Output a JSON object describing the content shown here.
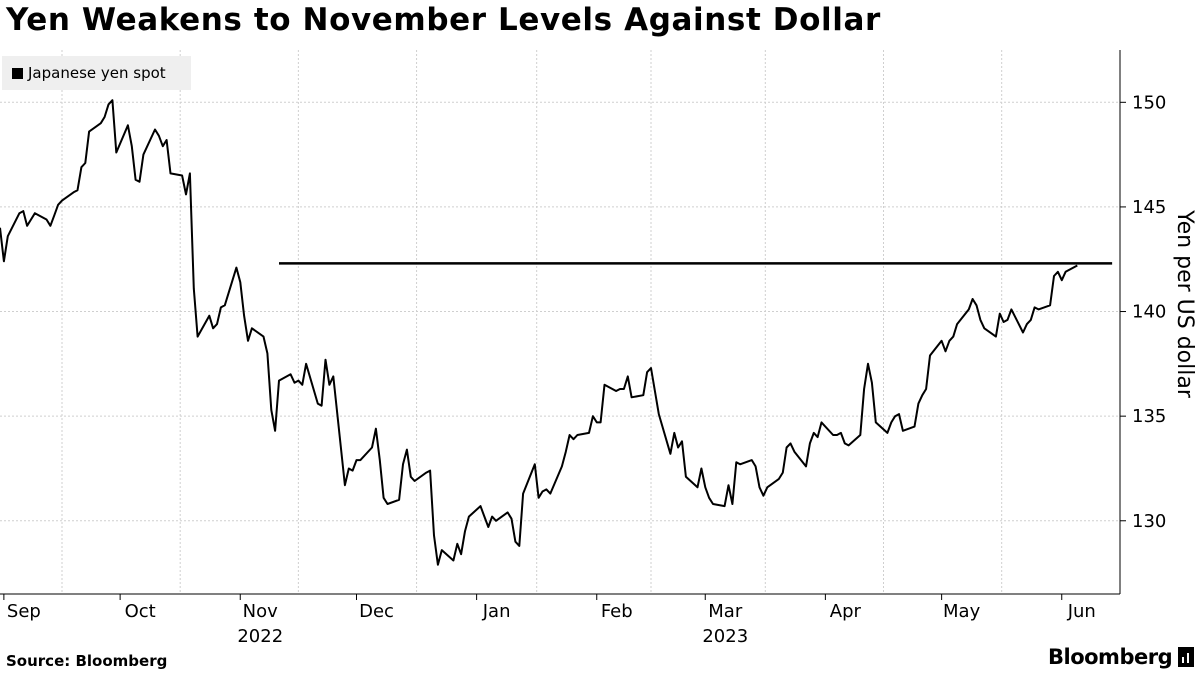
{
  "header": {
    "title": "Yen Weakens to November Levels Against Dollar"
  },
  "footer": {
    "source": "Source: Bloomberg",
    "brand": "Bloomberg"
  },
  "colors": {
    "line": "#000000",
    "grid": "#cfcfcf",
    "legend_bg": "#efefef"
  },
  "chart_data": {
    "type": "line",
    "title": "Yen Weakens to November Levels Against Dollar",
    "ylabel": "Yen per US dollar",
    "xlabel": "",
    "ylim": [
      126.5,
      152.5
    ],
    "y_ticks": [
      130,
      135,
      140,
      145,
      150
    ],
    "y_axis_position": "right",
    "grid": true,
    "legend": {
      "placement": "top-left",
      "entries": [
        "Japanese yen spot"
      ]
    },
    "x_range": [
      "2022-08-31",
      "2023-06-15"
    ],
    "x_month_ticks": [
      {
        "date": "2022-09-01",
        "label": "Sep"
      },
      {
        "date": "2022-10-01",
        "label": "Oct"
      },
      {
        "date": "2022-11-01",
        "label": "Nov"
      },
      {
        "date": "2022-12-01",
        "label": "Dec"
      },
      {
        "date": "2023-01-01",
        "label": "Jan"
      },
      {
        "date": "2023-02-01",
        "label": "Feb"
      },
      {
        "date": "2023-03-01",
        "label": "Mar"
      },
      {
        "date": "2023-04-01",
        "label": "Apr"
      },
      {
        "date": "2023-05-01",
        "label": "May"
      },
      {
        "date": "2023-06-01",
        "label": "Jun"
      }
    ],
    "x_year_labels": [
      {
        "date": "2022-11-01",
        "label": "2022"
      },
      {
        "date": "2023-03-01",
        "label": "2023"
      }
    ],
    "reference_line": {
      "value": 142.3,
      "start": "2022-11-11",
      "end": "2023-06-14"
    },
    "series": [
      {
        "name": "Japanese yen spot",
        "points": [
          [
            "2022-08-31",
            144.0
          ],
          [
            "2022-09-01",
            142.4
          ],
          [
            "2022-09-02",
            143.6
          ],
          [
            "2022-09-05",
            144.7
          ],
          [
            "2022-09-06",
            144.8
          ],
          [
            "2022-09-07",
            144.1
          ],
          [
            "2022-09-08",
            144.4
          ],
          [
            "2022-09-09",
            144.7
          ],
          [
            "2022-09-12",
            144.4
          ],
          [
            "2022-09-13",
            144.1
          ],
          [
            "2022-09-14",
            144.6
          ],
          [
            "2022-09-15",
            145.1
          ],
          [
            "2022-09-16",
            145.3
          ],
          [
            "2022-09-19",
            145.7
          ],
          [
            "2022-09-20",
            145.8
          ],
          [
            "2022-09-21",
            146.9
          ],
          [
            "2022-09-22",
            147.1
          ],
          [
            "2022-09-23",
            148.6
          ],
          [
            "2022-09-26",
            149.0
          ],
          [
            "2022-09-27",
            149.3
          ],
          [
            "2022-09-28",
            149.9
          ],
          [
            "2022-09-29",
            150.1
          ],
          [
            "2022-09-30",
            147.6
          ],
          [
            "2022-10-03",
            148.9
          ],
          [
            "2022-10-04",
            147.9
          ],
          [
            "2022-10-05",
            146.3
          ],
          [
            "2022-10-06",
            146.2
          ],
          [
            "2022-10-07",
            147.5
          ],
          [
            "2022-10-10",
            148.7
          ],
          [
            "2022-10-11",
            148.4
          ],
          [
            "2022-10-12",
            147.9
          ],
          [
            "2022-10-13",
            148.2
          ],
          [
            "2022-10-14",
            146.6
          ],
          [
            "2022-10-17",
            146.5
          ],
          [
            "2022-10-18",
            145.6
          ],
          [
            "2022-10-19",
            146.6
          ],
          [
            "2022-10-20",
            141.1
          ],
          [
            "2022-10-21",
            138.8
          ],
          [
            "2022-10-24",
            139.8
          ],
          [
            "2022-10-25",
            139.2
          ],
          [
            "2022-10-26",
            139.4
          ],
          [
            "2022-10-27",
            140.2
          ],
          [
            "2022-10-28",
            140.3
          ],
          [
            "2022-10-31",
            142.1
          ],
          [
            "2022-11-01",
            141.4
          ],
          [
            "2022-11-02",
            139.8
          ],
          [
            "2022-11-03",
            138.6
          ],
          [
            "2022-11-04",
            139.2
          ],
          [
            "2022-11-07",
            138.8
          ],
          [
            "2022-11-08",
            138.0
          ],
          [
            "2022-11-09",
            135.3
          ],
          [
            "2022-11-10",
            134.3
          ],
          [
            "2022-11-11",
            136.7
          ],
          [
            "2022-11-14",
            137.0
          ],
          [
            "2022-11-15",
            136.6
          ],
          [
            "2022-11-16",
            136.7
          ],
          [
            "2022-11-17",
            136.5
          ],
          [
            "2022-11-18",
            137.5
          ],
          [
            "2022-11-21",
            135.6
          ],
          [
            "2022-11-22",
            135.5
          ],
          [
            "2022-11-23",
            137.7
          ],
          [
            "2022-11-24",
            136.5
          ],
          [
            "2022-11-25",
            136.9
          ],
          [
            "2022-11-28",
            131.7
          ],
          [
            "2022-11-29",
            132.5
          ],
          [
            "2022-11-30",
            132.4
          ],
          [
            "2022-12-01",
            132.9
          ],
          [
            "2022-12-02",
            132.9
          ],
          [
            "2022-12-05",
            133.5
          ],
          [
            "2022-12-06",
            134.4
          ],
          [
            "2022-12-07",
            132.9
          ],
          [
            "2022-12-08",
            131.1
          ],
          [
            "2022-12-09",
            130.8
          ],
          [
            "2022-12-12",
            131.0
          ],
          [
            "2022-12-13",
            132.7
          ],
          [
            "2022-12-14",
            133.4
          ],
          [
            "2022-12-15",
            132.1
          ],
          [
            "2022-12-16",
            131.9
          ],
          [
            "2022-12-19",
            132.3
          ],
          [
            "2022-12-20",
            132.4
          ],
          [
            "2022-12-21",
            129.3
          ],
          [
            "2022-12-22",
            127.9
          ],
          [
            "2022-12-23",
            128.6
          ],
          [
            "2022-12-26",
            128.1
          ],
          [
            "2022-12-27",
            128.9
          ],
          [
            "2022-12-28",
            128.4
          ],
          [
            "2022-12-29",
            129.5
          ],
          [
            "2022-12-30",
            130.2
          ],
          [
            "2023-01-02",
            130.7
          ],
          [
            "2023-01-03",
            130.2
          ],
          [
            "2023-01-04",
            129.7
          ],
          [
            "2023-01-05",
            130.2
          ],
          [
            "2023-01-06",
            130.0
          ],
          [
            "2023-01-09",
            130.4
          ],
          [
            "2023-01-10",
            130.1
          ],
          [
            "2023-01-11",
            129.0
          ],
          [
            "2023-01-12",
            128.8
          ],
          [
            "2023-01-13",
            131.3
          ],
          [
            "2023-01-16",
            132.7
          ],
          [
            "2023-01-17",
            131.1
          ],
          [
            "2023-01-18",
            131.4
          ],
          [
            "2023-01-19",
            131.5
          ],
          [
            "2023-01-20",
            131.3
          ],
          [
            "2023-01-23",
            132.6
          ],
          [
            "2023-01-24",
            133.3
          ],
          [
            "2023-01-25",
            134.1
          ],
          [
            "2023-01-26",
            133.9
          ],
          [
            "2023-01-27",
            134.1
          ],
          [
            "2023-01-30",
            134.2
          ],
          [
            "2023-01-31",
            135.0
          ],
          [
            "2023-02-01",
            134.7
          ],
          [
            "2023-02-02",
            134.7
          ],
          [
            "2023-02-03",
            136.5
          ],
          [
            "2023-02-06",
            136.2
          ],
          [
            "2023-02-07",
            136.3
          ],
          [
            "2023-02-08",
            136.3
          ],
          [
            "2023-02-09",
            136.9
          ],
          [
            "2023-02-10",
            135.9
          ],
          [
            "2023-02-13",
            136.0
          ],
          [
            "2023-02-14",
            137.1
          ],
          [
            "2023-02-15",
            137.3
          ],
          [
            "2023-02-16",
            136.2
          ],
          [
            "2023-02-17",
            135.1
          ],
          [
            "2023-02-20",
            133.2
          ],
          [
            "2023-02-21",
            134.2
          ],
          [
            "2023-02-22",
            133.5
          ],
          [
            "2023-02-23",
            133.8
          ],
          [
            "2023-02-24",
            132.1
          ],
          [
            "2023-02-27",
            131.6
          ],
          [
            "2023-02-28",
            132.5
          ],
          [
            "2023-03-01",
            131.6
          ],
          [
            "2023-03-02",
            131.1
          ],
          [
            "2023-03-03",
            130.8
          ],
          [
            "2023-03-06",
            130.7
          ],
          [
            "2023-03-07",
            131.7
          ],
          [
            "2023-03-08",
            130.8
          ],
          [
            "2023-03-09",
            132.8
          ],
          [
            "2023-03-10",
            132.7
          ],
          [
            "2023-03-13",
            132.9
          ],
          [
            "2023-03-14",
            132.6
          ],
          [
            "2023-03-15",
            131.6
          ],
          [
            "2023-03-16",
            131.2
          ],
          [
            "2023-03-17",
            131.6
          ],
          [
            "2023-03-20",
            132.0
          ],
          [
            "2023-03-21",
            132.3
          ],
          [
            "2023-03-22",
            133.5
          ],
          [
            "2023-03-23",
            133.7
          ],
          [
            "2023-03-24",
            133.3
          ],
          [
            "2023-03-27",
            132.6
          ],
          [
            "2023-03-28",
            133.7
          ],
          [
            "2023-03-29",
            134.2
          ],
          [
            "2023-03-30",
            134.0
          ],
          [
            "2023-03-31",
            134.7
          ],
          [
            "2023-04-03",
            134.1
          ],
          [
            "2023-04-04",
            134.1
          ],
          [
            "2023-04-05",
            134.2
          ],
          [
            "2023-04-06",
            133.7
          ],
          [
            "2023-04-07",
            133.6
          ],
          [
            "2023-04-10",
            134.1
          ],
          [
            "2023-04-11",
            136.3
          ],
          [
            "2023-04-12",
            137.5
          ],
          [
            "2023-04-13",
            136.6
          ],
          [
            "2023-04-14",
            134.7
          ],
          [
            "2023-04-17",
            134.2
          ],
          [
            "2023-04-18",
            134.7
          ],
          [
            "2023-04-19",
            135.0
          ],
          [
            "2023-04-20",
            135.1
          ],
          [
            "2023-04-21",
            134.3
          ],
          [
            "2023-04-24",
            134.5
          ],
          [
            "2023-04-25",
            135.6
          ],
          [
            "2023-04-26",
            136.0
          ],
          [
            "2023-04-27",
            136.3
          ],
          [
            "2023-04-28",
            137.9
          ],
          [
            "2023-05-01",
            138.6
          ],
          [
            "2023-05-02",
            138.1
          ],
          [
            "2023-05-03",
            138.6
          ],
          [
            "2023-05-04",
            138.8
          ],
          [
            "2023-05-05",
            139.4
          ],
          [
            "2023-05-08",
            140.1
          ],
          [
            "2023-05-09",
            140.6
          ],
          [
            "2023-05-10",
            140.3
          ],
          [
            "2023-05-11",
            139.6
          ],
          [
            "2023-05-12",
            139.2
          ],
          [
            "2023-05-15",
            138.8
          ],
          [
            "2023-05-16",
            139.9
          ],
          [
            "2023-05-17",
            139.5
          ],
          [
            "2023-05-18",
            139.6
          ],
          [
            "2023-05-19",
            140.1
          ],
          [
            "2023-05-22",
            139.0
          ],
          [
            "2023-05-23",
            139.4
          ],
          [
            "2023-05-24",
            139.6
          ],
          [
            "2023-05-25",
            140.2
          ],
          [
            "2023-05-26",
            140.1
          ],
          [
            "2023-05-29",
            140.3
          ],
          [
            "2023-05-30",
            141.7
          ],
          [
            "2023-05-31",
            141.9
          ],
          [
            "2023-06-01",
            141.5
          ],
          [
            "2023-06-02",
            141.9
          ],
          [
            "2023-06-05",
            142.2
          ]
        ]
      }
    ]
  }
}
